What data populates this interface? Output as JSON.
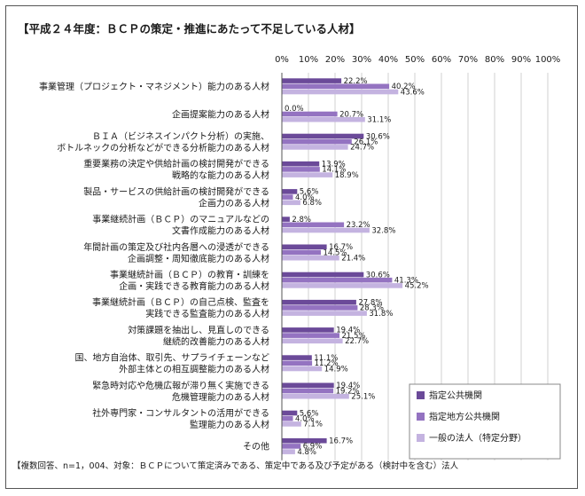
{
  "chart_data": {
    "type": "bar",
    "orientation": "horizontal",
    "title": "【平成２４年度：ＢＣＰの策定・推進にあたって不足している人材】",
    "note": "【複数回答、n=1，004、対象：ＢＣＰについて策定済みである、策定中である及び予定がある（検討中を含む）法人",
    "xlim": [
      0,
      100
    ],
    "ticks": [
      "0%",
      "10%",
      "20%",
      "30%",
      "40%",
      "50%",
      "60%",
      "70%",
      "80%",
      "90%",
      "100%"
    ],
    "categories": [
      [
        "事業管理（プロジェクト・マネジメント）能力のある人材"
      ],
      [
        "企画提案能力のある人材"
      ],
      [
        "ＢＩＡ（ビジネスインパクト分析）の実施、",
        "ボトルネックの分析などができる分析能力のある人材"
      ],
      [
        "重要業務の決定や供給計画の検討開発ができる",
        "戦略的な能力のある人材"
      ],
      [
        "製品・サービスの供給計画の検討開発ができる",
        "企画力のある人材"
      ],
      [
        "事業継続計画（ＢＣＰ）のマニュアルなどの",
        "文書作成能力のある人材"
      ],
      [
        "年間計画の策定及び社内各層への浸透ができる",
        "企画調整・周知徹底能力のある人材"
      ],
      [
        "事業継続計画（ＢＣＰ）の教育・訓練を",
        "企画・実践できる教育能力のある人材"
      ],
      [
        "事業継続計画（ＢＣＰ）の自己点検、監査を",
        "実践できる監査能力のある人材"
      ],
      [
        "対策課題を抽出し、見直しのできる",
        "継続的改善能力のある人材"
      ],
      [
        "国、地方自治体、取引先、サプライチェーンなど",
        "外部主体との相互調整能力のある人材"
      ],
      [
        "緊急時対応や危機広報が滞り無く実施できる",
        "危機管理能力のある人材"
      ],
      [
        "社外専門家・コンサルタントの活用ができる",
        "監理能力のある人材"
      ],
      [
        "その他"
      ]
    ],
    "series": [
      {
        "name": "指定公共機関",
        "color": "#6b4a99",
        "values": [
          22.2,
          0.0,
          30.6,
          13.9,
          5.6,
          2.8,
          16.7,
          30.6,
          27.8,
          19.4,
          11.1,
          19.4,
          5.6,
          16.7
        ],
        "labels": [
          "22.2%",
          "0.0%",
          "30.6%",
          "13.9%",
          "5.6%",
          "2.8%",
          "16.7%",
          "30.6%",
          "27.8%",
          "19.4%",
          "11.1%",
          "19.4%",
          "5.6%",
          "16.7%"
        ]
      },
      {
        "name": "指定地方公共機関",
        "color": "#9473c1",
        "values": [
          40.2,
          20.7,
          26.1,
          14.1,
          4.0,
          23.2,
          14.5,
          41.3,
          28.3,
          21.5,
          11.2,
          19.2,
          4.0,
          6.9
        ],
        "labels": [
          "40.2%",
          "20.7%",
          "26.1%",
          "14.1%",
          "4.0%",
          "23.2%",
          "14.5%",
          "41.3%",
          "28.3%",
          "21.5%",
          "11.2%",
          "19.2%",
          "4.0%",
          "6.9%"
        ]
      },
      {
        "name": "一般の法人（特定分野）",
        "color": "#c4b3e0",
        "values": [
          43.6,
          31.1,
          24.7,
          18.9,
          6.8,
          32.8,
          21.4,
          45.2,
          31.8,
          22.7,
          14.9,
          25.1,
          7.1,
          4.8
        ],
        "labels": [
          "43.6%",
          "31.1%",
          "24.7%",
          "18.9%",
          "6.8%",
          "32.8%",
          "21.4%",
          "45.2%",
          "31.8%",
          "22.7%",
          "14.9%",
          "25.1%",
          "7.1%",
          "4.8%"
        ]
      }
    ],
    "legend_position": "bottom-right"
  }
}
